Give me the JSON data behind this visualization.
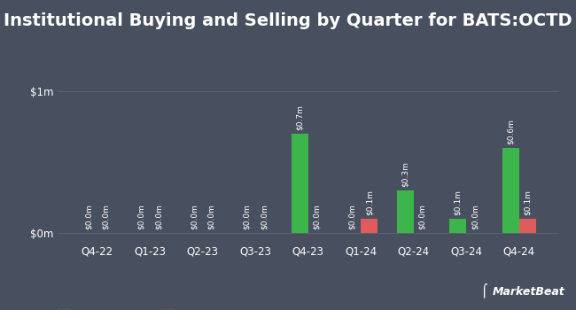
{
  "title": "Institutional Buying and Selling by Quarter for BATS:OCTD",
  "categories": [
    "Q4-22",
    "Q1-23",
    "Q2-23",
    "Q3-23",
    "Q4-23",
    "Q1-24",
    "Q2-24",
    "Q3-24",
    "Q4-24"
  ],
  "inflows": [
    0.0,
    0.0,
    0.0,
    0.0,
    0.7,
    0.0,
    0.3,
    0.1,
    0.6
  ],
  "outflows": [
    0.0,
    0.0,
    0.0,
    0.0,
    0.0,
    0.1,
    0.0,
    0.0,
    0.1
  ],
  "inflow_labels": [
    "$0.0m",
    "$0.0m",
    "$0.0m",
    "$0.0m",
    "$0.7m",
    "$0.0m",
    "$0.3m",
    "$0.1m",
    "$0.6m"
  ],
  "outflow_labels": [
    "$0.0m",
    "$0.0m",
    "$0.0m",
    "$0.0m",
    "$0.0m",
    "$0.1m",
    "$0.0m",
    "$0.0m",
    "$0.1m"
  ],
  "inflow_color": "#3cb54a",
  "outflow_color": "#e05c5c",
  "bg_color": "#484f5e",
  "text_color": "#ffffff",
  "grid_color": "#5a6272",
  "yticks": [
    0,
    1
  ],
  "ytick_labels": [
    "$0m",
    "$1m"
  ],
  "ylim": [
    -0.06,
    1.25
  ],
  "bar_width": 0.32,
  "title_fontsize": 14,
  "label_fontsize": 6.5,
  "axis_fontsize": 8.5,
  "legend_fontsize": 8
}
